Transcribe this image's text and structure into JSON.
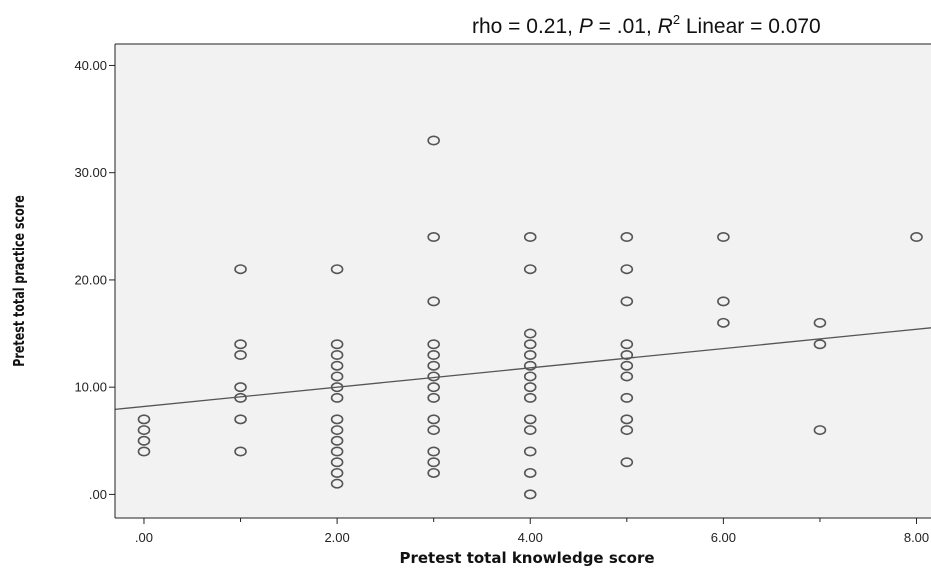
{
  "chart_data": {
    "type": "scatter",
    "annotation": {
      "prefix": "rho = 0.21, ",
      "p_symbol": "P",
      "p_value": " = .01, ",
      "r_symbol": "R",
      "r_superscript": "2",
      "r_value": " Linear = 0.070"
    },
    "xlabel": "Pretest total knowledge score",
    "ylabel": "Pretest total practice score",
    "xlim": [
      -0.3,
      8.15
    ],
    "ylim": [
      -2.2,
      42.0
    ],
    "x_ticks": [
      0,
      2,
      4,
      6,
      8
    ],
    "x_tick_labels": [
      ".00",
      "2.00",
      "4.00",
      "6.00",
      "8.00"
    ],
    "y_ticks": [
      0,
      10,
      20,
      30,
      40
    ],
    "y_tick_labels": [
      ".00",
      "10.00",
      "20.00",
      "30.00",
      "40.00"
    ],
    "x_minor_ticks": [
      1,
      3,
      5,
      7
    ],
    "grid": false,
    "plot_background": "#f2f2f2",
    "marker_color": "#555555",
    "fit_line": {
      "intercept": 8.2,
      "slope": 0.9
    },
    "points": [
      [
        0,
        7
      ],
      [
        0,
        6
      ],
      [
        0,
        5
      ],
      [
        0,
        4
      ],
      [
        1,
        21
      ],
      [
        1,
        14
      ],
      [
        1,
        13
      ],
      [
        1,
        10
      ],
      [
        1,
        9
      ],
      [
        1,
        7
      ],
      [
        1,
        4
      ],
      [
        2,
        21
      ],
      [
        2,
        14
      ],
      [
        2,
        13
      ],
      [
        2,
        12
      ],
      [
        2,
        11
      ],
      [
        2,
        10
      ],
      [
        2,
        9
      ],
      [
        2,
        7
      ],
      [
        2,
        6
      ],
      [
        2,
        5
      ],
      [
        2,
        4
      ],
      [
        2,
        3
      ],
      [
        2,
        2
      ],
      [
        2,
        1
      ],
      [
        3,
        33
      ],
      [
        3,
        24
      ],
      [
        3,
        18
      ],
      [
        3,
        14
      ],
      [
        3,
        13
      ],
      [
        3,
        12
      ],
      [
        3,
        11
      ],
      [
        3,
        10
      ],
      [
        3,
        9
      ],
      [
        3,
        7
      ],
      [
        3,
        6
      ],
      [
        3,
        4
      ],
      [
        3,
        3
      ],
      [
        3,
        2
      ],
      [
        4,
        24
      ],
      [
        4,
        21
      ],
      [
        4,
        15
      ],
      [
        4,
        14
      ],
      [
        4,
        13
      ],
      [
        4,
        12
      ],
      [
        4,
        11
      ],
      [
        4,
        10
      ],
      [
        4,
        9
      ],
      [
        4,
        7
      ],
      [
        4,
        6
      ],
      [
        4,
        4
      ],
      [
        4,
        2
      ],
      [
        4,
        0
      ],
      [
        5,
        24
      ],
      [
        5,
        21
      ],
      [
        5,
        18
      ],
      [
        5,
        14
      ],
      [
        5,
        13
      ],
      [
        5,
        12
      ],
      [
        5,
        11
      ],
      [
        5,
        9
      ],
      [
        5,
        7
      ],
      [
        5,
        6
      ],
      [
        5,
        3
      ],
      [
        6,
        24
      ],
      [
        6,
        18
      ],
      [
        6,
        16
      ],
      [
        7,
        16
      ],
      [
        7,
        14
      ],
      [
        7,
        6
      ],
      [
        8,
        24
      ]
    ]
  }
}
